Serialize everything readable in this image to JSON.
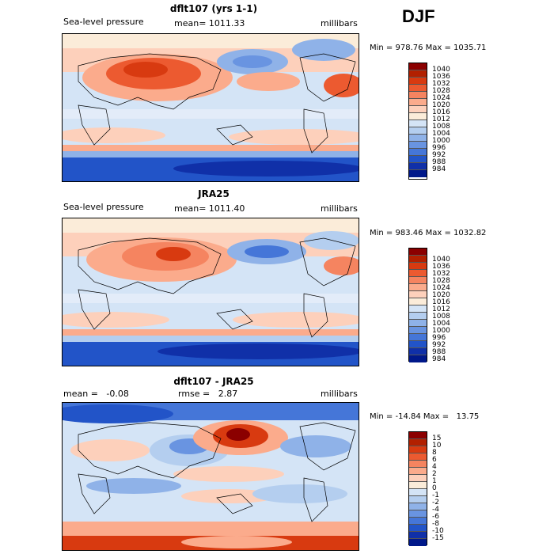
{
  "season": "DJF",
  "chart_data": [
    {
      "type": "heatmap",
      "title": "dflt107 (yrs 1-1)",
      "variable": "Sea-level pressure",
      "mean_text": "mean= 1011.33",
      "units": "millibars",
      "minmax_text": "Min = 978.76 Max = 1035.71",
      "min": 978.76,
      "max": 1035.71,
      "levels": [
        "1040",
        "1036",
        "1032",
        "1028",
        "1024",
        "1020",
        "1016",
        "1012",
        "1008",
        "1004",
        "1000",
        "996",
        "992",
        "988",
        "984"
      ]
    },
    {
      "type": "heatmap",
      "title": "JRA25",
      "variable": "Sea-level pressure",
      "mean_text": "mean= 1011.40",
      "units": "millibars",
      "minmax_text": "Min = 983.46 Max = 1032.82",
      "min": 983.46,
      "max": 1032.82,
      "levels": [
        "1040",
        "1036",
        "1032",
        "1028",
        "1024",
        "1020",
        "1016",
        "1012",
        "1008",
        "1004",
        "1000",
        "996",
        "992",
        "988",
        "984"
      ]
    },
    {
      "type": "heatmap",
      "title": "dflt107 - JRA25",
      "mean_text": "mean =   -0.08",
      "rmse_text": "rmse =   2.87",
      "units": "millibars",
      "minmax_text": "Min = -14.84 Max =   13.75",
      "min": -14.84,
      "max": 13.75,
      "levels": [
        "15",
        "10",
        "8",
        "6",
        "4",
        "2",
        "1",
        "0",
        "-1",
        "-2",
        "-4",
        "-6",
        "-8",
        "-10",
        "-15"
      ]
    }
  ],
  "colors": [
    "#8b0000",
    "#b22000",
    "#d83a10",
    "#ec5a30",
    "#f58460",
    "#fbab8c",
    "#fdd0bb",
    "#fbecd9",
    "#d4e4f6",
    "#b4ceef",
    "#8fb2e8",
    "#6994e1",
    "#4576d8",
    "#2254c8",
    "#1030a8",
    "#00188a"
  ]
}
